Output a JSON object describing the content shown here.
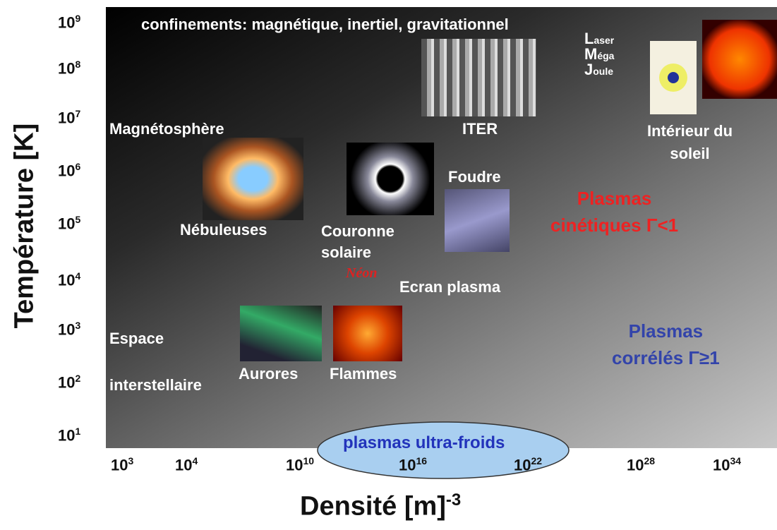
{
  "y_axis": {
    "title": "Température [K]",
    "ticks": [
      {
        "base": "10",
        "exp": "9"
      },
      {
        "base": "10",
        "exp": "8"
      },
      {
        "base": "10",
        "exp": "7"
      },
      {
        "base": "10",
        "exp": "6"
      },
      {
        "base": "10",
        "exp": "5"
      },
      {
        "base": "10",
        "exp": "4"
      },
      {
        "base": "10",
        "exp": "3"
      },
      {
        "base": "10",
        "exp": "2"
      },
      {
        "base": "10",
        "exp": "1"
      }
    ]
  },
  "x_axis": {
    "title": "Densité [m]",
    "title_exp": "-3",
    "ticks": [
      {
        "base": "10",
        "exp": "3"
      },
      {
        "base": "10",
        "exp": "4"
      },
      {
        "base": "10",
        "exp": "10"
      },
      {
        "base": "10",
        "exp": "16"
      },
      {
        "base": "10",
        "exp": "22"
      },
      {
        "base": "10",
        "exp": "28"
      },
      {
        "base": "10",
        "exp": "34"
      }
    ]
  },
  "labels": {
    "confinements": "confinements: magnétique, inertiel, gravitationnel",
    "laser": [
      "L",
      "aser"
    ],
    "mega": [
      "M",
      "éga"
    ],
    "joule": [
      "J",
      "oule"
    ],
    "iter": "ITER",
    "interieur": [
      "Intérieur du",
      "soleil"
    ],
    "magnetosphere": "Magnétosphère",
    "nebuleuses": "Nébuleuses",
    "couronne": [
      "Couronne",
      "solaire"
    ],
    "foudre": "Foudre",
    "neon": "Néon",
    "ecran": "Ecran plasma",
    "cinetiques": [
      "Plasmas",
      "cinétiques Γ<1"
    ],
    "correles": [
      "Plasmas",
      "corrélés Γ≥1"
    ],
    "espace": [
      "Espace",
      "interstellaire"
    ],
    "aurores": "Aurores",
    "flammes": "Flammes",
    "ultrafroids": "plasmas ultra-froids"
  }
}
